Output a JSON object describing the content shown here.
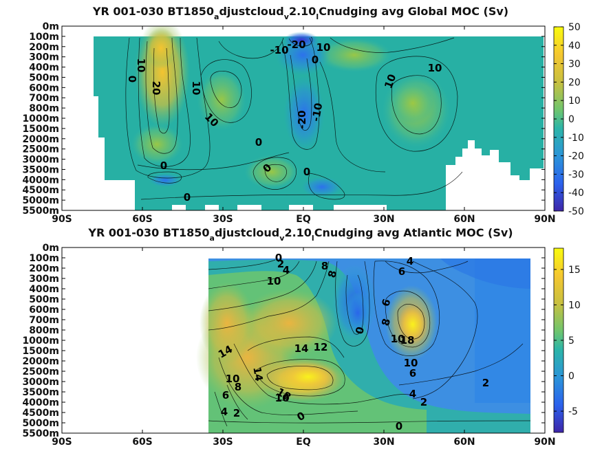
{
  "chart_data": [
    {
      "type": "heatmap",
      "title": "YR 001-030 BT1850_adjustcloud_v2.10_l Cnudging avg  Global MOC (Sv)",
      "title_parts": {
        "a": "YR 001-030 BT1850",
        "b": "a",
        "c": "djustcloud",
        "d": "v",
        "e": "2.10",
        "f": "l",
        "g": "Cnudging avg  Global MOC (Sv)"
      },
      "x_ticks": [
        "90S",
        "60S",
        "30S",
        "EQ",
        "30N",
        "60N",
        "90N"
      ],
      "y_ticks": [
        "0m",
        "100m",
        "200m",
        "300m",
        "400m",
        "500m",
        "600m",
        "700m",
        "800m",
        "1000m",
        "1500m",
        "2000m",
        "2500m",
        "3000m",
        "3500m",
        "4000m",
        "4500m",
        "5000m",
        "5500m"
      ],
      "colorbar": {
        "min": -50,
        "max": 50,
        "ticks": [
          "50",
          "40",
          "30",
          "20",
          "10",
          "0",
          "-10",
          "-20",
          "-30",
          "-40",
          "-50"
        ]
      },
      "contour_labels": [
        "-20",
        "-10",
        "10",
        "0",
        "10",
        "0",
        "20",
        "10",
        "10",
        "10",
        "-20",
        "-10",
        "0",
        "10",
        "0",
        "0",
        "0",
        "0"
      ]
    },
    {
      "type": "heatmap",
      "title": "YR 001-030 BT1850_adjustcloud_v2.10_l Cnudging avg  Atlantic MOC (Sv)",
      "title_parts": {
        "a": "YR 001-030 BT1850",
        "b": "a",
        "c": "djustcloud",
        "d": "v",
        "e": "2.10",
        "f": "l",
        "g": "Cnudging avg  Atlantic MOC (Sv)"
      },
      "x_ticks": [
        "90S",
        "60S",
        "30S",
        "EQ",
        "30N",
        "60N",
        "90N"
      ],
      "y_ticks": [
        "0m",
        "100m",
        "200m",
        "300m",
        "400m",
        "500m",
        "600m",
        "700m",
        "800m",
        "1000m",
        "1500m",
        "2000m",
        "2500m",
        "3000m",
        "3500m",
        "4000m",
        "4500m",
        "5000m",
        "5500m"
      ],
      "colorbar": {
        "min": -8,
        "max": 18,
        "ticks": [
          "15",
          "10",
          "5",
          "0",
          "-5"
        ]
      },
      "contour_labels": [
        "0",
        "8",
        "2",
        "4",
        "6",
        "8",
        "10",
        "4",
        "6",
        "8",
        "10",
        "18",
        "10",
        "14",
        "12",
        "14",
        "14",
        "10",
        "8",
        "6",
        "4",
        "2",
        "18",
        "16",
        "0",
        "0",
        "0",
        "2",
        "6",
        "4",
        "2"
      ]
    }
  ]
}
